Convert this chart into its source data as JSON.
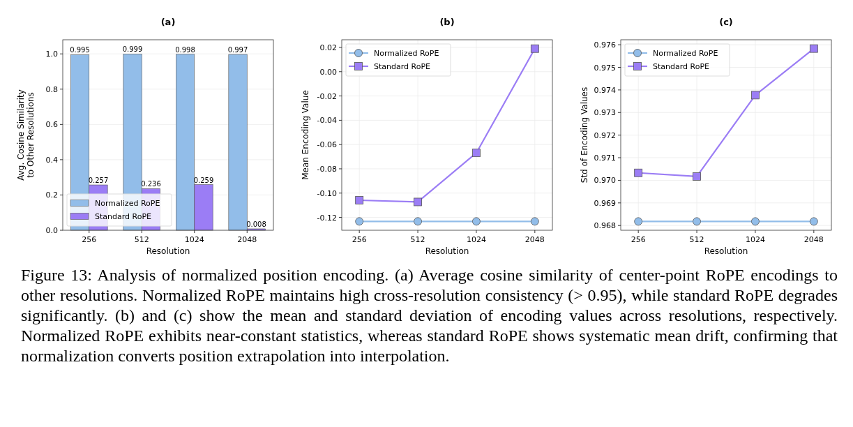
{
  "chart_data": [
    {
      "type": "bar",
      "title": "(a)",
      "xlabel": "Resolution",
      "ylabel": "Avg. Cosine Similarity\nto Other Resolutions",
      "categories": [
        "256",
        "512",
        "1024",
        "2048"
      ],
      "ylim": [
        0,
        1.08
      ],
      "yticks": [
        {
          "value": 0,
          "label": "0.0"
        },
        {
          "value": 0.2,
          "label": "0.2"
        },
        {
          "value": 0.4,
          "label": "0.4"
        },
        {
          "value": 0.6,
          "label": "0.6"
        },
        {
          "value": 0.8,
          "label": "0.8"
        },
        {
          "value": 1,
          "label": "1.0"
        }
      ],
      "grid": "y",
      "legend": "bottom left",
      "data_labels": true,
      "series": [
        {
          "name": "Normalized RoPE",
          "color": "#92bde9",
          "values": [
            0.995,
            0.999,
            0.998,
            0.997
          ]
        },
        {
          "name": "Standard RoPE",
          "color": "#9b7df5",
          "values": [
            0.257,
            0.236,
            0.259,
            0.008
          ]
        }
      ]
    },
    {
      "type": "line",
      "title": "(b)",
      "xlabel": "Resolution",
      "ylabel": "Mean Encoding Value",
      "categories": [
        "256",
        "512",
        "1024",
        "2048"
      ],
      "ylim": [
        -0.1306,
        0.0263
      ],
      "yticks": [
        {
          "value": -0.12,
          "label": "-0.12"
        },
        {
          "value": -0.1,
          "label": "-0.10"
        },
        {
          "value": -0.08,
          "label": "-0.08"
        },
        {
          "value": -0.06,
          "label": "-0.06"
        },
        {
          "value": -0.04,
          "label": "-0.04"
        },
        {
          "value": -0.02,
          "label": "-0.02"
        },
        {
          "value": 0,
          "label": "0.00"
        },
        {
          "value": 0.02,
          "label": "0.02"
        }
      ],
      "grid": true,
      "legend": "top left",
      "series": [
        {
          "name": "Normalized RoPE",
          "color": "#92bde9",
          "marker": "circle",
          "values": [
            -0.1233,
            -0.1233,
            -0.1233,
            -0.1233
          ]
        },
        {
          "name": "Standard RoPE",
          "color": "#9b7df5",
          "marker": "square",
          "values": [
            -0.1059,
            -0.1073,
            -0.0669,
            0.019
          ]
        }
      ]
    },
    {
      "type": "line",
      "title": "(c)",
      "xlabel": "Resolution",
      "ylabel": "Std of Encoding Values",
      "categories": [
        "256",
        "512",
        "1024",
        "2048"
      ],
      "ylim": [
        0.96779,
        0.97622
      ],
      "yticks": [
        0.968,
        0.969,
        {
          "value": 0.97,
          "label": "0.970"
        },
        0.971,
        0.972,
        0.973,
        0.974,
        0.975,
        0.976
      ],
      "grid": true,
      "legend": "top left",
      "series": [
        {
          "name": "Normalized RoPE",
          "color": "#92bde9",
          "marker": "circle",
          "values": [
            0.96818,
            0.96818,
            0.96818,
            0.96818
          ]
        },
        {
          "name": "Standard RoPE",
          "color": "#9b7df5",
          "marker": "square",
          "values": [
            0.97033,
            0.97017,
            0.97377,
            0.97583
          ]
        }
      ]
    },
    {
      "type": "other",
      "annotations": [
        "Figure 13: Analysis of normalized position encoding. (a) Average cosine similarity of center-point RoPE encodings to other resolutions. Normalized RoPE maintains high cross-resolution consistency (> 0.95), while standard RoPE degrades significantly. (b) and (c) show the mean and standard deviation of encoding values across resolutions, respectively. Normalized RoPE exhibits near-constant statistics, whereas standard RoPE shows systematic mean drift, confirming that normalization converts position extrapolation into interpolation."
      ]
    }
  ]
}
